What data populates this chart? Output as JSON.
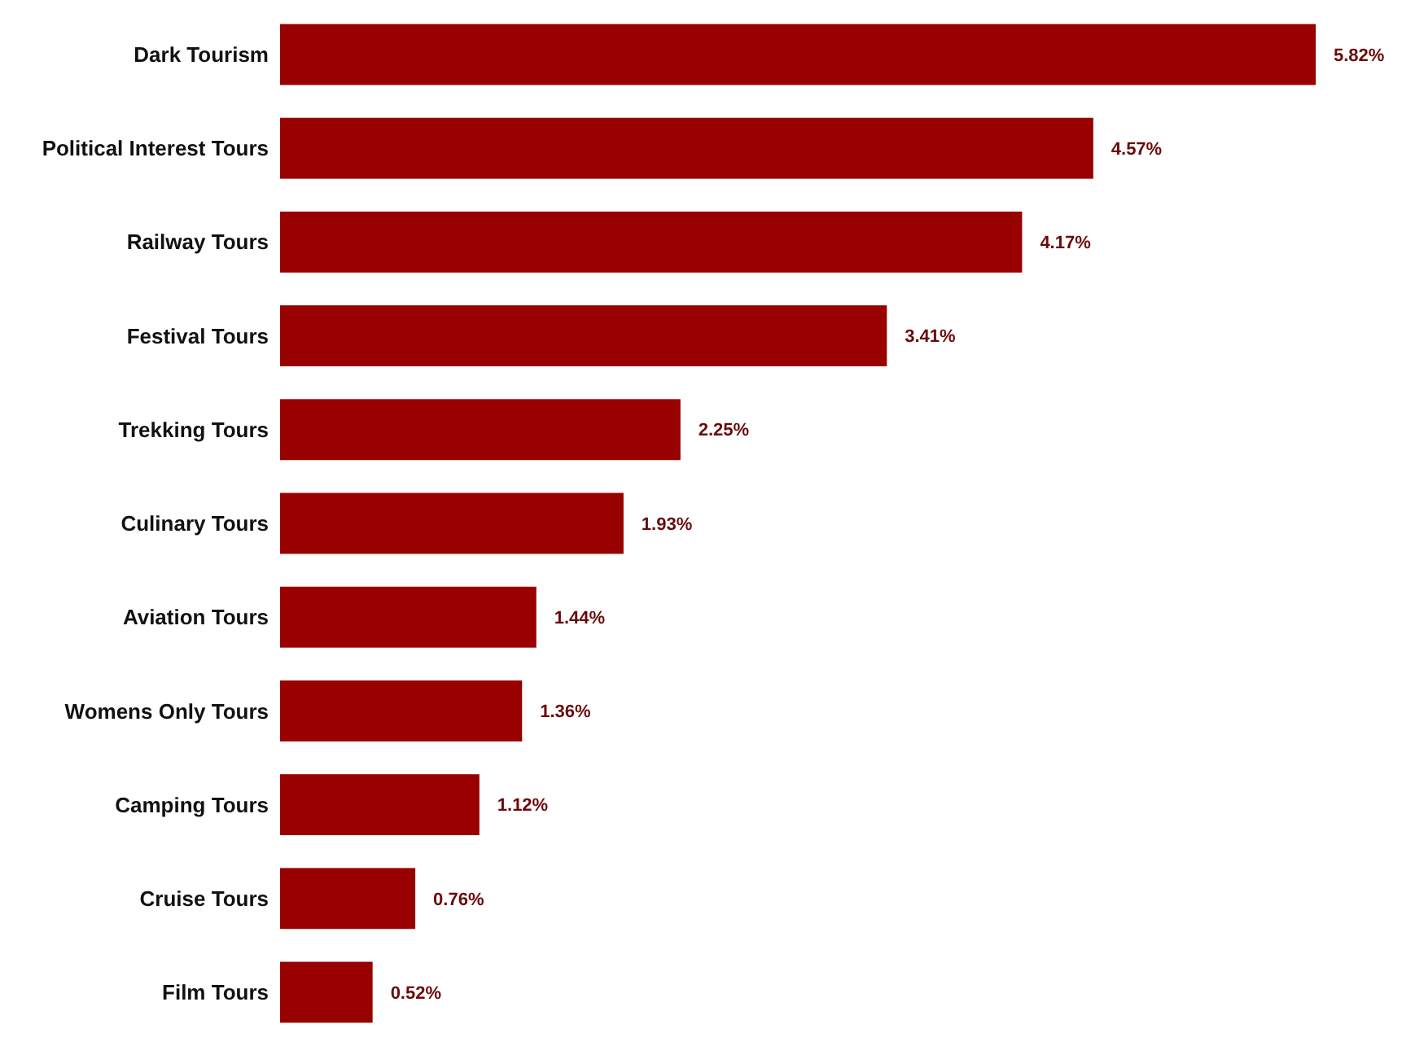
{
  "chart_data": {
    "type": "bar",
    "orientation": "horizontal",
    "categories": [
      "Dark Tourism",
      "Political Interest Tours",
      "Railway Tours",
      "Festival Tours",
      "Trekking Tours",
      "Culinary Tours",
      "Aviation Tours",
      "Womens Only Tours",
      "Camping Tours",
      "Cruise Tours",
      "Film Tours"
    ],
    "values": [
      5.82,
      4.57,
      4.17,
      3.41,
      2.25,
      1.93,
      1.44,
      1.36,
      1.12,
      0.76,
      0.52
    ],
    "value_labels": [
      "5.82%",
      "4.57%",
      "4.17%",
      "3.41%",
      "2.25%",
      "1.93%",
      "1.44%",
      "1.36%",
      "1.12%",
      "0.76%",
      "0.52%"
    ],
    "color": "#990000"
  }
}
